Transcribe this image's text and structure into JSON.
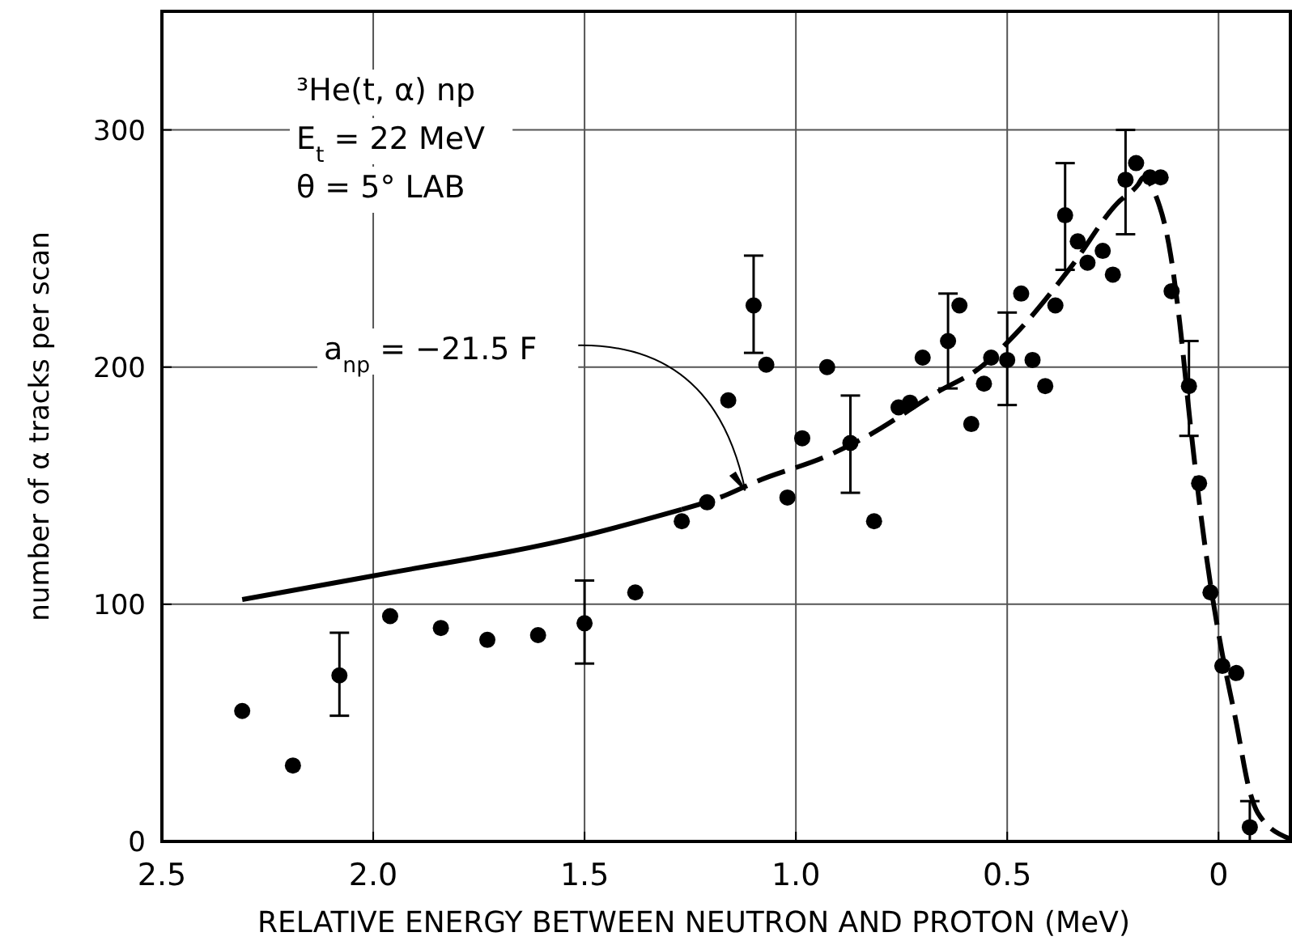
{
  "chart_data": {
    "type": "scatter",
    "xlabel": "RELATIVE ENERGY BETWEEN NEUTRON AND PROTON (MeV)",
    "ylabel": "number of α tracks per scan",
    "xlim": [
      2.5,
      -0.17
    ],
    "ylim": [
      0,
      350
    ],
    "xticks": [
      {
        "value": 2.5,
        "label": "2.5"
      },
      {
        "value": 2,
        "label": "2.0"
      },
      {
        "value": 1.5,
        "label": "1.5"
      },
      {
        "value": 1,
        "label": "1.0"
      },
      {
        "value": 0.5,
        "label": "0.5"
      },
      0
    ],
    "yticks": [
      0,
      100,
      200,
      300
    ],
    "grid": true,
    "annotations": [
      "³He(t, α) np",
      "E$_{t}$ = 22 MeV",
      "θ = 5° LAB",
      {
        "text": "a$_{np}$ = −21.5 F",
        "x": 1.12,
        "y": 148
      }
    ],
    "series": [
      {
        "color": "#000000",
        "marker": "circle",
        "x": [
          2.31,
          2.19,
          2.08,
          1.96,
          1.84,
          1.73,
          1.61,
          1.5,
          1.38,
          1.27,
          1.21,
          1.16,
          1.1,
          1.07,
          1.02,
          0.985,
          0.926,
          0.871,
          0.815,
          0.757,
          0.73,
          0.7,
          0.64,
          0.613,
          0.585,
          0.555,
          0.538,
          0.5,
          0.467,
          0.44,
          0.41,
          0.386,
          0.363,
          0.333,
          0.31,
          0.274,
          0.25,
          0.22,
          0.195,
          0.162,
          0.137,
          0.111,
          0.07,
          0.046,
          0.019,
          -0.009,
          -0.042,
          -0.074
        ],
        "values": [
          55,
          32,
          70,
          95,
          90,
          85,
          87,
          92,
          105,
          135,
          143,
          186,
          226,
          201,
          145,
          170,
          200,
          168,
          135,
          183,
          185,
          204,
          211,
          226,
          176,
          193,
          204,
          203,
          231,
          203,
          192,
          226,
          264,
          253,
          244,
          249,
          239,
          279,
          286,
          280,
          280,
          232,
          192,
          151,
          105,
          74,
          71,
          6
        ],
        "errors": [
          null,
          null,
          [
            53,
            88
          ],
          null,
          null,
          null,
          null,
          [
            75,
            110
          ],
          null,
          null,
          null,
          null,
          [
            206,
            247
          ],
          null,
          null,
          null,
          null,
          [
            147,
            188
          ],
          null,
          null,
          null,
          null,
          [
            191,
            231
          ],
          null,
          null,
          null,
          null,
          [
            184,
            223
          ],
          null,
          null,
          null,
          null,
          [
            241,
            286
          ],
          null,
          null,
          null,
          null,
          [
            256,
            300
          ],
          null,
          null,
          null,
          null,
          [
            171,
            211
          ],
          null,
          null,
          null,
          null,
          [
            0,
            17
          ]
        ]
      },
      {
        "type": "line",
        "color": "#000000",
        "line_style": "solid",
        "x": [
          2.31,
          2.0,
          1.5,
          1.27
        ],
        "values": [
          102,
          112,
          129,
          140
        ]
      },
      {
        "type": "line",
        "color": "#000000",
        "line_style": "dashed",
        "x": [
          1.27,
          1.18,
          1.09,
          0.92,
          0.83,
          0.66,
          0.57,
          0.48,
          0.35,
          0.24,
          0.19,
          0.178,
          0.15,
          0.113,
          0.092,
          0.068,
          0.042,
          0.017,
          -0.009,
          -0.041,
          -0.074,
          -0.093,
          -0.17
        ],
        "values": [
          140,
          145,
          152,
          163,
          171,
          190,
          199,
          214,
          242,
          269,
          277,
          280,
          273,
          247,
          219,
          178,
          138,
          106,
          79,
          51,
          21,
          12,
          1
        ]
      }
    ]
  }
}
